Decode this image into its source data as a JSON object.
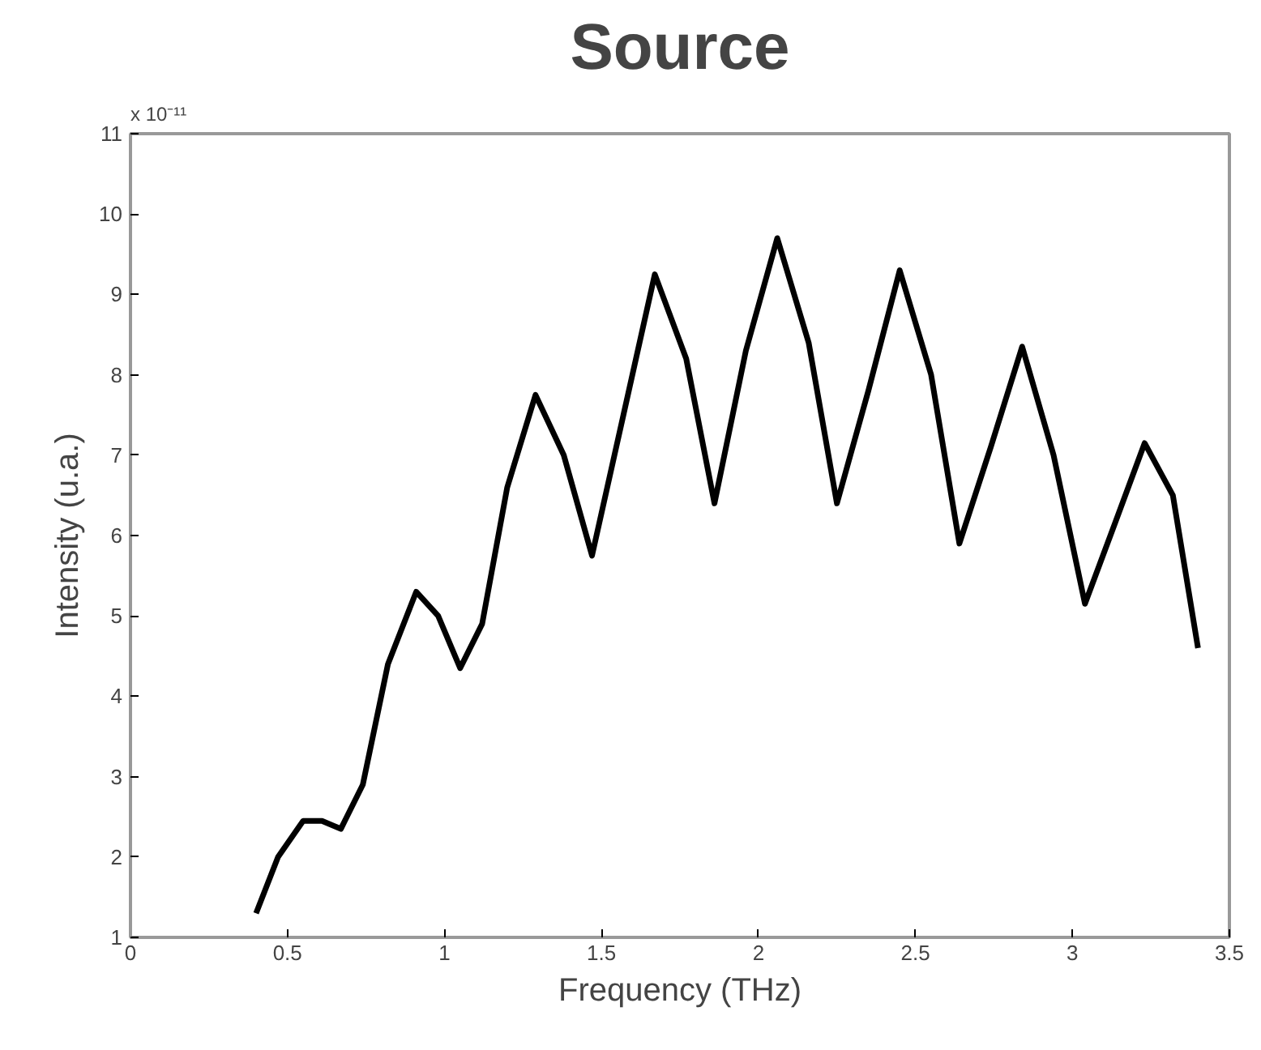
{
  "chart_data": {
    "type": "line",
    "title": "Source",
    "xlabel": "Frequency (THz)",
    "ylabel": "Intensity (u.a.)",
    "annotations": [
      "x 10⁻¹¹"
    ],
    "x": [
      0.4,
      0.47,
      0.55,
      0.61,
      0.67,
      0.74,
      0.82,
      0.91,
      0.98,
      1.05,
      1.12,
      1.2,
      1.29,
      1.38,
      1.47,
      1.57,
      1.67,
      1.77,
      1.86,
      1.96,
      2.06,
      2.16,
      2.25,
      2.35,
      2.45,
      2.55,
      2.64,
      2.74,
      2.84,
      2.94,
      3.04,
      3.14,
      3.23,
      3.32,
      3.4
    ],
    "series": [
      {
        "color": "#000000",
        "values": [
          1.3,
          2.0,
          2.45,
          2.45,
          2.35,
          2.9,
          4.4,
          5.3,
          5.0,
          4.35,
          4.9,
          6.6,
          7.75,
          7.0,
          5.75,
          7.5,
          9.25,
          8.2,
          6.4,
          8.3,
          9.7,
          8.4,
          6.4,
          7.8,
          9.3,
          8.0,
          5.9,
          7.1,
          8.35,
          7.0,
          5.15,
          6.2,
          7.15,
          6.5,
          4.6
        ]
      }
    ],
    "xlim": [
      0,
      3.5
    ],
    "ylim": [
      1,
      11
    ],
    "xticks": [
      0,
      0.5,
      1,
      1.5,
      2,
      2.5,
      3,
      3.5
    ],
    "yticks": [
      1,
      2,
      3,
      4,
      5,
      6,
      7,
      8,
      9,
      10,
      11
    ],
    "grid": false,
    "marker": "none",
    "line_style": "solid"
  }
}
